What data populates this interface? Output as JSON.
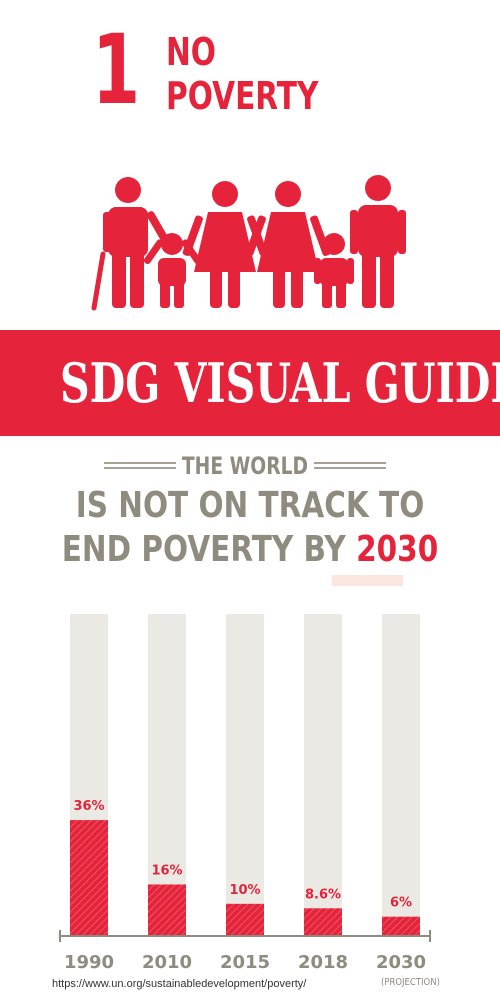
{
  "goal": {
    "number": "1",
    "title_line1": "NO",
    "title_line2": "POVERTY"
  },
  "banner": {
    "text": "SDG VISUAL GUIDE"
  },
  "headline": {
    "kicker": "THE WORLD",
    "line1": "IS NOT ON TRACK TO",
    "line2_prefix": "END POVERTY BY ",
    "line2_accent": "2030"
  },
  "icons": {
    "family": "family-of-six-icon"
  },
  "colors": {
    "brand_red": "#e5243b",
    "bar_track": "#ebe9e3",
    "text_gray": "#8f8b7e",
    "highlight": "#fde5df"
  },
  "chart_data": {
    "type": "bar",
    "categories": [
      "1990",
      "2010",
      "2015",
      "2018",
      "2030"
    ],
    "values": [
      36,
      16,
      10,
      8.6,
      6
    ],
    "value_labels": [
      "36%",
      "16%",
      "10%",
      "8.6%",
      "6%"
    ],
    "ylim": [
      0,
      100
    ],
    "annotations": [
      "(PROJECTION)"
    ],
    "title": "",
    "xlabel": "",
    "ylabel": ""
  },
  "footer": {
    "source": "https://www.un.org/sustainabledevelopment/poverty/",
    "projection_note": "(PROJECTION)"
  }
}
